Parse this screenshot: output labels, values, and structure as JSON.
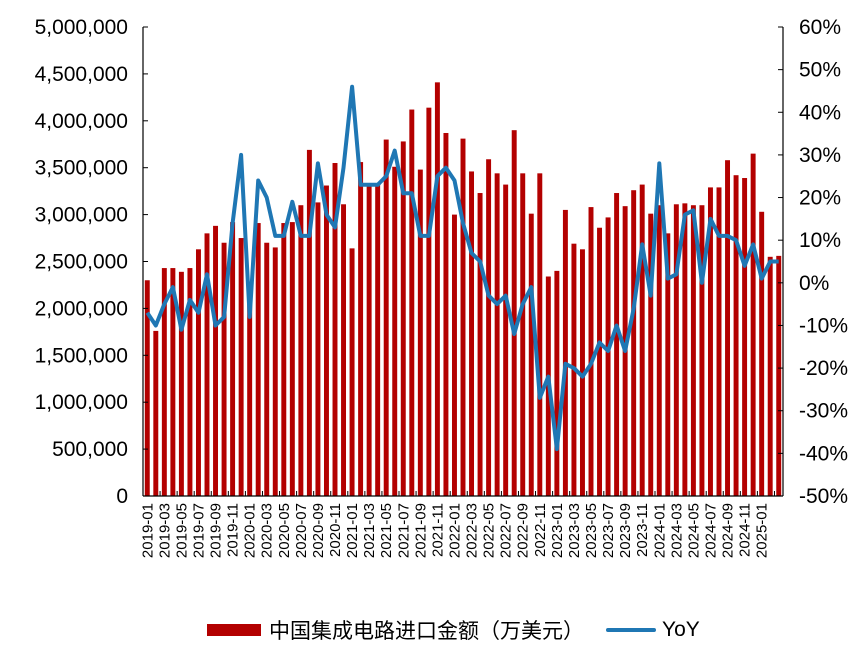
{
  "chart_data": {
    "type": "bar+line",
    "title": "",
    "xlabel": "",
    "ylabel_left": "",
    "ylabel_right": "",
    "ylim_left": [
      0,
      5000000
    ],
    "ylim_right": [
      -50,
      60
    ],
    "left_ticks": [
      "0",
      "500,000",
      "1,000,000",
      "1,500,000",
      "2,000,000",
      "2,500,000",
      "3,000,000",
      "3,500,000",
      "4,000,000",
      "4,500,000",
      "5,000,000"
    ],
    "right_ticks": [
      "-50%",
      "-40%",
      "-30%",
      "-20%",
      "-10%",
      "0%",
      "10%",
      "20%",
      "30%",
      "40%",
      "50%",
      "60%"
    ],
    "x_tick_labels": [
      "2019-01",
      "2019-03",
      "2019-05",
      "2019-07",
      "2019-09",
      "2019-11",
      "2020-01",
      "2020-03",
      "2020-05",
      "2020-07",
      "2020-09",
      "2020-11",
      "2021-01",
      "2021-03",
      "2021-05",
      "2021-07",
      "2021-09",
      "2021-11",
      "2022-01",
      "2022-03",
      "2022-05",
      "2022-07",
      "2022-09",
      "2022-11",
      "2023-01",
      "2023-03",
      "2023-05",
      "2023-07",
      "2023-09",
      "2023-11",
      "2024-01",
      "2024-03",
      "2024-05",
      "2024-07",
      "2024-09",
      "2024-11",
      "2025-01"
    ],
    "categories": [
      "2019-01",
      "2019-02",
      "2019-03",
      "2019-04",
      "2019-05",
      "2019-06",
      "2019-07",
      "2019-08",
      "2019-09",
      "2019-10",
      "2019-11",
      "2019-12",
      "2020-01",
      "2020-02",
      "2020-03",
      "2020-04",
      "2020-05",
      "2020-06",
      "2020-07",
      "2020-08",
      "2020-09",
      "2020-10",
      "2020-11",
      "2020-12",
      "2021-01",
      "2021-02",
      "2021-03",
      "2021-04",
      "2021-05",
      "2021-06",
      "2021-07",
      "2021-08",
      "2021-09",
      "2021-10",
      "2021-11",
      "2021-12",
      "2022-01",
      "2022-02",
      "2022-03",
      "2022-04",
      "2022-05",
      "2022-06",
      "2022-07",
      "2022-08",
      "2022-09",
      "2022-10",
      "2022-11",
      "2022-12",
      "2023-01",
      "2023-02",
      "2023-03",
      "2023-04",
      "2023-05",
      "2023-06",
      "2023-07",
      "2023-08",
      "2023-09",
      "2023-10",
      "2023-11",
      "2023-12",
      "2024-01",
      "2024-02",
      "2024-03",
      "2024-04",
      "2024-05",
      "2024-06",
      "2024-07",
      "2024-08",
      "2024-09",
      "2024-10",
      "2024-11",
      "2024-12",
      "2025-01",
      "2025-02",
      "2025-03"
    ],
    "series": [
      {
        "name": "中国集成电路进口金额（万美元）",
        "type": "bar",
        "axis": "left",
        "color": "#b30000",
        "values": [
          2300000,
          1760000,
          2430000,
          2430000,
          2390000,
          2430000,
          2630000,
          2800000,
          2880000,
          2700000,
          2920000,
          2750000,
          2140000,
          2910000,
          2700000,
          2650000,
          2910000,
          2920000,
          3100000,
          3690000,
          3130000,
          3310000,
          3550000,
          3110000,
          2640000,
          3560000,
          3310000,
          3320000,
          3800000,
          3510000,
          3780000,
          4120000,
          3480000,
          4140000,
          4410000,
          3870000,
          3000000,
          3810000,
          3460000,
          3230000,
          3590000,
          3440000,
          3320000,
          3900000,
          3440000,
          3010000,
          3440000,
          2340000,
          2400000,
          3050000,
          2690000,
          2630000,
          3080000,
          2860000,
          2970000,
          3230000,
          3090000,
          3260000,
          3320000,
          3010000,
          3100000,
          2800000,
          3110000,
          3120000,
          3100000,
          3100000,
          3290000,
          3290000,
          3580000,
          3420000,
          3390000,
          3650000,
          3030000,
          2550000,
          2560000
        ]
      },
      {
        "name": "YoY",
        "type": "line",
        "axis": "right",
        "color": "#1f77b4",
        "values": [
          -7,
          -10,
          -5,
          -1,
          -11,
          -4,
          -7,
          2,
          -10,
          -8,
          14,
          30,
          -8,
          24,
          20,
          11,
          11,
          19,
          11,
          11,
          28,
          16,
          13,
          27,
          46,
          23,
          23,
          23,
          25,
          31,
          21,
          21,
          11,
          11,
          25,
          27,
          24,
          14,
          7,
          5,
          -3,
          -5,
          -3,
          -12,
          -5,
          -1,
          -27,
          -22,
          -39,
          -19,
          -20,
          -22,
          -19,
          -14,
          -16,
          -10,
          -16,
          -6,
          9,
          -3,
          28,
          1,
          2,
          16,
          17,
          0,
          15,
          11,
          11,
          10,
          4,
          9,
          1,
          5,
          5
        ]
      }
    ],
    "legend": {
      "position": "bottom",
      "items": [
        {
          "label": "中国集成电路进口金额（万美元）",
          "type": "bar",
          "color": "#b30000"
        },
        {
          "label": "YoY",
          "type": "line",
          "color": "#1f77b4"
        }
      ]
    },
    "grid": false
  },
  "legend": {
    "bar_label": "中国集成电路进口金额（万美元）",
    "line_label": "YoY"
  }
}
